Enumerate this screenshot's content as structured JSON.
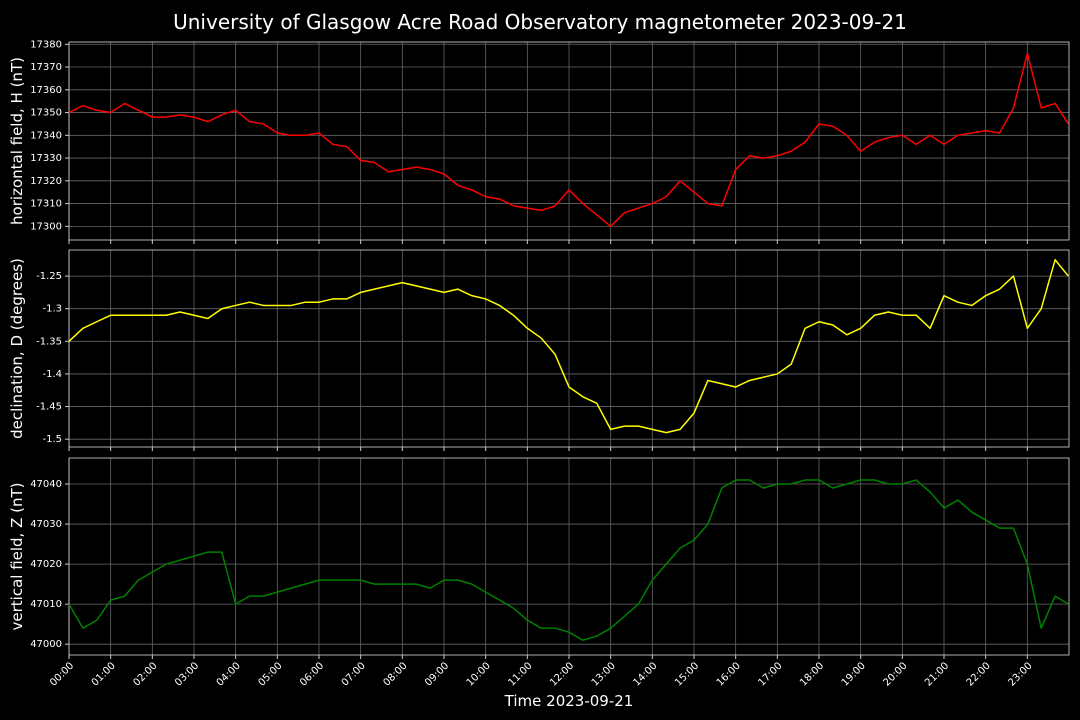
{
  "chart_data": [
    {
      "type": "line",
      "title": "University of Glasgow Acre Road Observatory magnetometer 2023-09-21",
      "ylabel": "horizontal field, H (nT)",
      "color": "#ff0000",
      "grid": true,
      "xlim": [
        "00:00",
        "24:00"
      ],
      "ylim": [
        17294,
        17381
      ],
      "yticks": [
        17300,
        17310,
        17320,
        17330,
        17340,
        17350,
        17360,
        17370,
        17380
      ],
      "x": [
        "00:00",
        "00:20",
        "00:40",
        "01:00",
        "01:20",
        "01:40",
        "02:00",
        "02:20",
        "02:40",
        "03:00",
        "03:20",
        "03:40",
        "04:00",
        "04:20",
        "04:40",
        "05:00",
        "05:20",
        "05:40",
        "06:00",
        "06:20",
        "06:40",
        "07:00",
        "07:20",
        "07:40",
        "08:00",
        "08:20",
        "08:40",
        "09:00",
        "09:20",
        "09:40",
        "10:00",
        "10:20",
        "10:40",
        "11:00",
        "11:20",
        "11:40",
        "12:00",
        "12:20",
        "12:40",
        "13:00",
        "13:20",
        "13:40",
        "14:00",
        "14:20",
        "14:40",
        "15:00",
        "15:20",
        "15:40",
        "16:00",
        "16:20",
        "16:40",
        "17:00",
        "17:20",
        "17:40",
        "18:00",
        "18:20",
        "18:40",
        "19:00",
        "19:20",
        "19:40",
        "20:00",
        "20:20",
        "20:40",
        "21:00",
        "21:20",
        "21:40",
        "22:00",
        "22:20",
        "22:40",
        "23:00",
        "23:20",
        "23:40",
        "23:59"
      ],
      "values": [
        17350,
        17353,
        17351,
        17350,
        17354,
        17351,
        17348,
        17348,
        17349,
        17348,
        17346,
        17349,
        17351,
        17346,
        17345,
        17341,
        17340,
        17340,
        17341,
        17336,
        17335,
        17329,
        17328,
        17324,
        17325,
        17326,
        17325,
        17323,
        17318,
        17316,
        17313,
        17312,
        17309,
        17308,
        17307,
        17309,
        17316,
        17310,
        17305,
        17300,
        17306,
        17308,
        17310,
        17313,
        17320,
        17315,
        17310,
        17309,
        17325,
        17331,
        17330,
        17331,
        17333,
        17337,
        17345,
        17344,
        17340,
        17333,
        17337,
        17339,
        17340,
        17336,
        17340,
        17336,
        17340,
        17341,
        17342,
        17341,
        17352,
        17376,
        17352,
        17354,
        17345
      ]
    },
    {
      "type": "line",
      "ylabel": "declination, D (degrees)",
      "color": "#ffff00",
      "grid": true,
      "xlim": [
        "00:00",
        "24:00"
      ],
      "ylim": [
        -1.512,
        -1.21
      ],
      "yticks": [
        -1.5,
        -1.45,
        -1.4,
        -1.35,
        -1.3,
        -1.25
      ],
      "x": [
        "00:00",
        "00:20",
        "00:40",
        "01:00",
        "01:20",
        "01:40",
        "02:00",
        "02:20",
        "02:40",
        "03:00",
        "03:20",
        "03:40",
        "04:00",
        "04:20",
        "04:40",
        "05:00",
        "05:20",
        "05:40",
        "06:00",
        "06:20",
        "06:40",
        "07:00",
        "07:20",
        "07:40",
        "08:00",
        "08:20",
        "08:40",
        "09:00",
        "09:20",
        "09:40",
        "10:00",
        "10:20",
        "10:40",
        "11:00",
        "11:20",
        "11:40",
        "12:00",
        "12:20",
        "12:40",
        "13:00",
        "13:20",
        "13:40",
        "14:00",
        "14:20",
        "14:40",
        "15:00",
        "15:20",
        "15:40",
        "16:00",
        "16:20",
        "16:40",
        "17:00",
        "17:20",
        "17:40",
        "18:00",
        "18:20",
        "18:40",
        "19:00",
        "19:20",
        "19:40",
        "20:00",
        "20:20",
        "20:40",
        "21:00",
        "21:20",
        "21:40",
        "22:00",
        "22:20",
        "22:40",
        "23:00",
        "23:20",
        "23:40",
        "23:59"
      ],
      "values": [
        -1.35,
        -1.33,
        -1.32,
        -1.31,
        -1.31,
        -1.31,
        -1.31,
        -1.31,
        -1.305,
        -1.31,
        -1.315,
        -1.3,
        -1.295,
        -1.29,
        -1.295,
        -1.295,
        -1.295,
        -1.29,
        -1.29,
        -1.285,
        -1.285,
        -1.275,
        -1.27,
        -1.265,
        -1.26,
        -1.265,
        -1.27,
        -1.275,
        -1.27,
        -1.28,
        -1.285,
        -1.295,
        -1.31,
        -1.33,
        -1.345,
        -1.37,
        -1.42,
        -1.435,
        -1.445,
        -1.485,
        -1.48,
        -1.48,
        -1.485,
        -1.49,
        -1.485,
        -1.46,
        -1.41,
        -1.415,
        -1.42,
        -1.41,
        -1.405,
        -1.4,
        -1.385,
        -1.33,
        -1.32,
        -1.325,
        -1.34,
        -1.33,
        -1.31,
        -1.305,
        -1.31,
        -1.31,
        -1.33,
        -1.28,
        -1.29,
        -1.295,
        -1.28,
        -1.27,
        -1.25,
        -1.33,
        -1.3,
        -1.225,
        -1.25
      ]
    },
    {
      "type": "line",
      "ylabel": "vertical field, Z (nT)",
      "xlabel": "Time 2023-09-21",
      "color": "#008000",
      "grid": true,
      "xlim": [
        "00:00",
        "24:00"
      ],
      "ylim": [
        46997.3,
        47046.5
      ],
      "yticks": [
        47000,
        47010,
        47020,
        47030,
        47040
      ],
      "xticks": [
        "00:00",
        "01:00",
        "02:00",
        "03:00",
        "04:00",
        "05:00",
        "06:00",
        "07:00",
        "08:00",
        "09:00",
        "10:00",
        "11:00",
        "12:00",
        "13:00",
        "14:00",
        "15:00",
        "16:00",
        "17:00",
        "18:00",
        "19:00",
        "20:00",
        "21:00",
        "22:00",
        "23:00"
      ],
      "x": [
        "00:00",
        "00:20",
        "00:40",
        "01:00",
        "01:20",
        "01:40",
        "02:00",
        "02:20",
        "02:40",
        "03:00",
        "03:20",
        "03:40",
        "04:00",
        "04:20",
        "04:40",
        "05:00",
        "05:20",
        "05:40",
        "06:00",
        "06:20",
        "06:40",
        "07:00",
        "07:20",
        "07:40",
        "08:00",
        "08:20",
        "08:40",
        "09:00",
        "09:20",
        "09:40",
        "10:00",
        "10:20",
        "10:40",
        "11:00",
        "11:20",
        "11:40",
        "12:00",
        "12:20",
        "12:40",
        "13:00",
        "13:20",
        "13:40",
        "14:00",
        "14:20",
        "14:40",
        "15:00",
        "15:20",
        "15:40",
        "16:00",
        "16:20",
        "16:40",
        "17:00",
        "17:20",
        "17:40",
        "18:00",
        "18:20",
        "18:40",
        "19:00",
        "19:20",
        "19:40",
        "20:00",
        "20:20",
        "20:40",
        "21:00",
        "21:20",
        "21:40",
        "22:00",
        "22:20",
        "22:40",
        "23:00",
        "23:20",
        "23:40",
        "23:59"
      ],
      "values": [
        47010,
        47004,
        47006,
        47011,
        47012,
        47016,
        47018,
        47020,
        47021,
        47022,
        47023,
        47023,
        47010,
        47012,
        47012,
        47013,
        47014,
        47015,
        47016,
        47016,
        47016,
        47016,
        47015,
        47015,
        47015,
        47015,
        47014,
        47016,
        47016,
        47015,
        47013,
        47011,
        47009,
        47006,
        47004,
        47004,
        47003,
        47001,
        47002,
        47004,
        47007,
        47010,
        47016,
        47020,
        47024,
        47026,
        47030,
        47039,
        47041,
        47041,
        47039,
        47040,
        47040,
        47041,
        47041,
        47039,
        47040,
        47041,
        47041,
        47040,
        47040,
        47041,
        47038,
        47034,
        47036,
        47033,
        47031,
        47029,
        47029,
        47020,
        47004,
        47012,
        47010
      ]
    }
  ]
}
